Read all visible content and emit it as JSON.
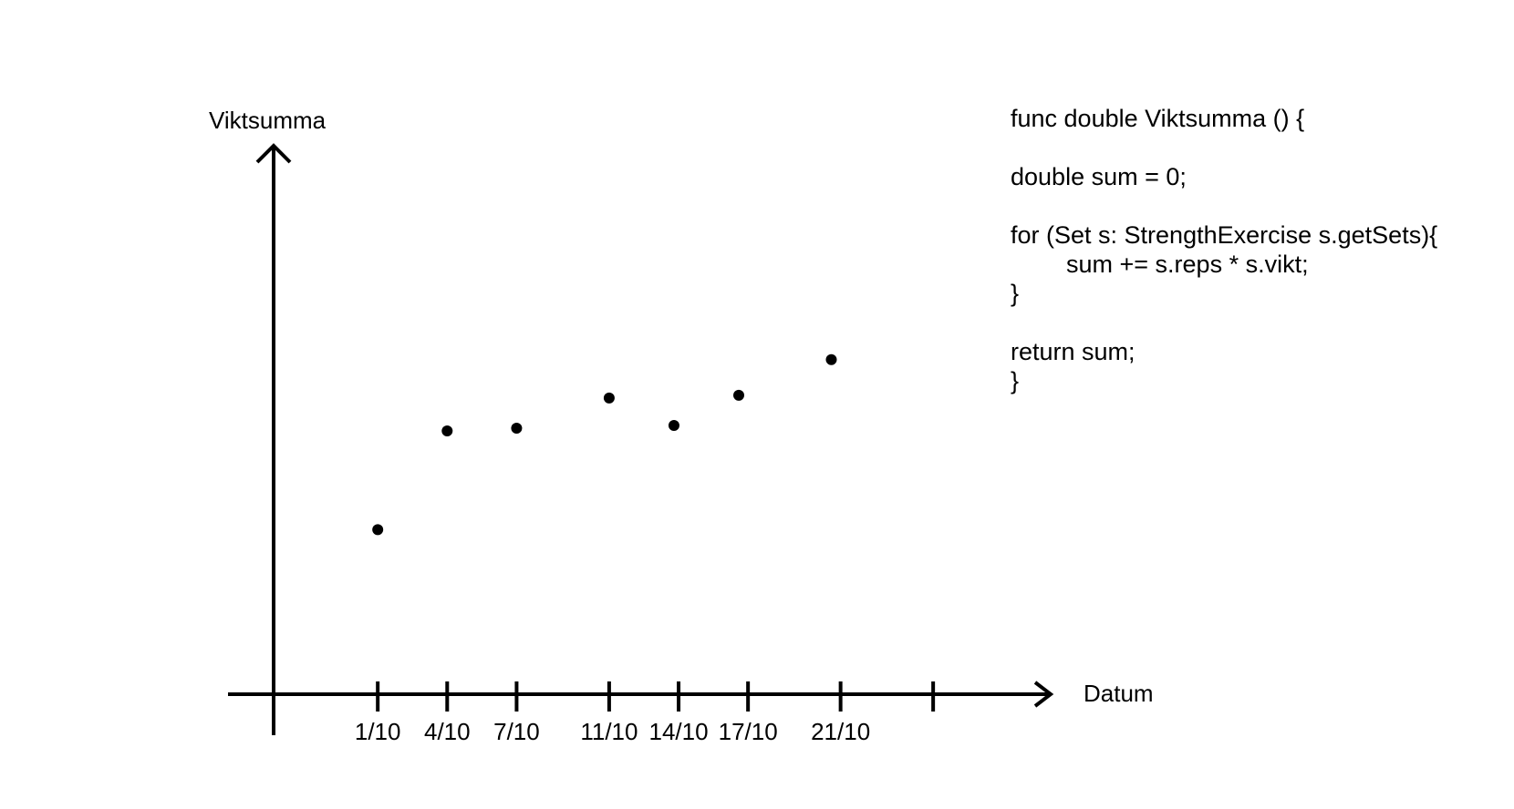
{
  "chart_data": {
    "type": "scatter",
    "xlabel": "Datum",
    "ylabel": "Viktsumma",
    "x_tick_labels": [
      "1/10",
      "4/10",
      "7/10",
      "11/10",
      "14/10",
      "17/10",
      "21/10",
      ""
    ],
    "x_ticks_day": [
      1,
      4,
      7,
      11,
      14,
      17,
      21,
      25
    ],
    "xlim_day": [
      -3.5,
      30
    ],
    "ylim": [
      0,
      1
    ],
    "points": [
      {
        "day": 1,
        "y": 0.3
      },
      {
        "day": 4,
        "y": 0.48
      },
      {
        "day": 7,
        "y": 0.485
      },
      {
        "day": 11,
        "y": 0.54
      },
      {
        "day": 13.8,
        "y": 0.49
      },
      {
        "day": 16.6,
        "y": 0.545
      },
      {
        "day": 20.6,
        "y": 0.61
      }
    ],
    "grid": false,
    "legend": "none",
    "colors": {
      "ink": "#000000",
      "background": "#ffffff"
    }
  },
  "code": {
    "lines": [
      {
        "text": "func double Viktsumma () {",
        "indent": false
      },
      {
        "text": "",
        "indent": false
      },
      {
        "text": "double sum = 0;",
        "indent": false
      },
      {
        "text": "",
        "indent": false
      },
      {
        "text": "for (Set s: StrengthExercise s.getSets){",
        "indent": false
      },
      {
        "text": "sum += s.reps * s.vikt;",
        "indent": true
      },
      {
        "text": "}",
        "indent": false
      },
      {
        "text": "",
        "indent": false
      },
      {
        "text": "return sum;",
        "indent": false
      },
      {
        "text": "}",
        "indent": false
      }
    ]
  }
}
